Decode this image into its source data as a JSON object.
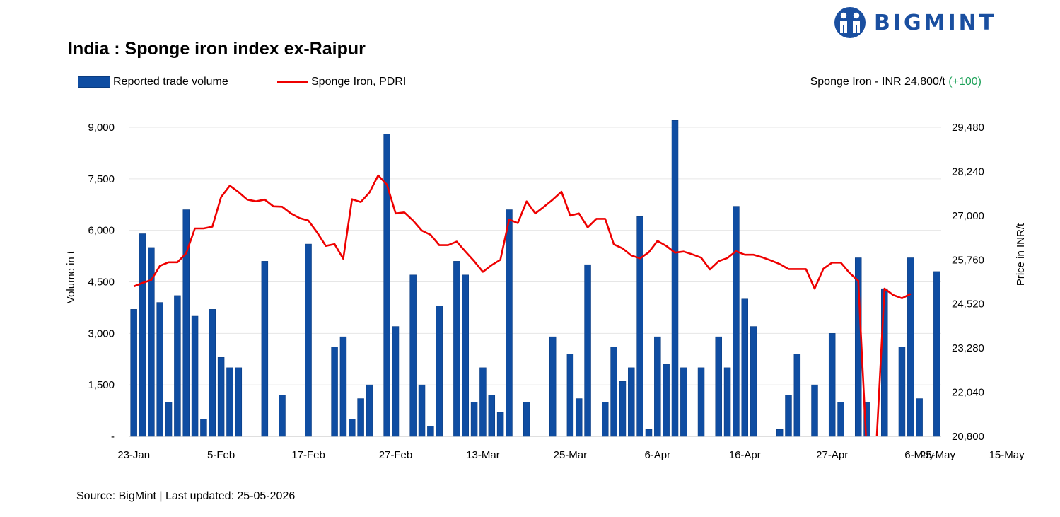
{
  "brand": {
    "name": "BIGMINT"
  },
  "title": "India : Sponge iron index ex-Raipur",
  "legend": {
    "bars": "Reported trade volume",
    "line": "Sponge Iron, PDRI"
  },
  "summary": {
    "text": "Sponge Iron - INR 24,800/t",
    "change": "(+100)"
  },
  "source": "Source: BigMint  |  Last updated: 25-05-2026",
  "colors": {
    "bar": "#0f4da2",
    "line": "#ee0000",
    "change": "#1fa25a",
    "brand": "#1a4fa0"
  },
  "chart_data": {
    "type": "bar+line",
    "title": "India : Sponge iron index ex-Raipur",
    "ylabel": "Volume in t",
    "y2label": "Price in INR/t",
    "ylim": [
      0,
      9000
    ],
    "y2lim": [
      20800,
      29480
    ],
    "yticks": [
      "-",
      "1,500",
      "3,000",
      "4,500",
      "6,000",
      "7,500",
      "9,000"
    ],
    "y2ticks": [
      "20,800",
      "22,040",
      "23,280",
      "24,520",
      "25,760",
      "27,000",
      "28,240",
      "29,480"
    ],
    "xtick_labels": [
      "23-Jan",
      "5-Feb",
      "17-Feb",
      "27-Feb",
      "13-Mar",
      "25-Mar",
      "6-Apr",
      "16-Apr",
      "27-Apr",
      "6-May",
      "15-May",
      "25-May"
    ],
    "xtick_positions": [
      0,
      10,
      20,
      30,
      40,
      50,
      60,
      70,
      80,
      90,
      100,
      110
    ],
    "grid": true,
    "series": [
      {
        "name": "Reported trade volume",
        "type": "bar",
        "values": [
          3700,
          5900,
          5500,
          3900,
          1000,
          4100,
          6600,
          3500,
          500,
          3700,
          2300,
          2000,
          2000,
          0,
          0,
          5100,
          0,
          1200,
          0,
          0,
          5600,
          0,
          0,
          2600,
          2900,
          500,
          1100,
          1500,
          0,
          8800,
          3200,
          0,
          4700,
          1500,
          300,
          3800,
          0,
          5100,
          4700,
          1000,
          2000,
          1200,
          700,
          6600,
          0,
          1000,
          0,
          0,
          2900,
          0,
          2400,
          1100,
          5000,
          0,
          1000,
          2600,
          1600,
          2000,
          6400,
          200,
          2900,
          2100,
          9200,
          2000,
          0,
          2000,
          0,
          2900,
          2000,
          6700,
          4000,
          3200,
          0,
          0,
          200,
          1200,
          2400,
          0,
          1500,
          0,
          3000,
          1000,
          0,
          5200,
          1000,
          0,
          4300,
          0,
          2600,
          5200,
          1100,
          0,
          4800
        ]
      },
      {
        "name": "Sponge Iron, PDRI",
        "type": "line",
        "values": [
          25010,
          25110,
          25190,
          25590,
          25690,
          25690,
          25940,
          26640,
          26640,
          26690,
          27520,
          27840,
          27660,
          27450,
          27400,
          27450,
          27260,
          27250,
          27060,
          26930,
          26860,
          26530,
          26150,
          26200,
          25790,
          27460,
          27380,
          27650,
          28130,
          27870,
          27060,
          27090,
          26860,
          26580,
          26460,
          26170,
          26170,
          26270,
          25990,
          25720,
          25420,
          25610,
          25760,
          26890,
          26790,
          27400,
          27060,
          27250,
          27450,
          27670,
          27000,
          27060,
          26670,
          26910,
          26910,
          26190,
          26080,
          25880,
          25800,
          25970,
          26290,
          26150,
          25960,
          25990,
          25910,
          25820,
          25490,
          25720,
          25810,
          26000,
          25900,
          25900,
          25830,
          25740,
          25640,
          25500,
          25500,
          25500,
          24950,
          25510,
          25680,
          25680,
          25390,
          25170,
          19800,
          19800,
          24950,
          24770,
          24680,
          24800
        ]
      }
    ]
  }
}
